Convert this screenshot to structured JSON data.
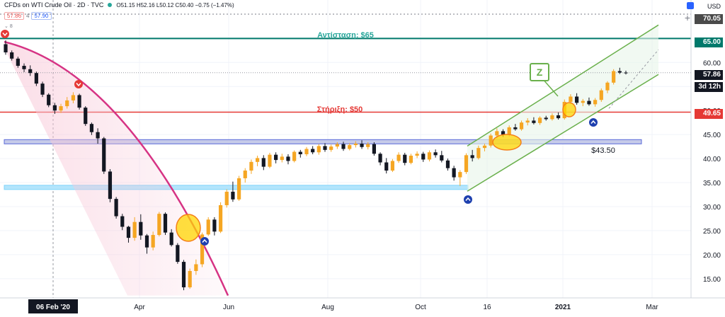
{
  "header": {
    "title": "CFDs on WTI Crude Oil · 2D · TVC",
    "ohlc": "O51.15 H52.16 L50.12 C50.40 −0.75 (−1.47%)",
    "bid": "57.86",
    "ask": "57.90",
    "spread": "4",
    "indicator_count": "8",
    "currency": "USD"
  },
  "colors": {
    "up": "#f5a623",
    "down": "#131722",
    "resistance": "#00796b",
    "support": "#e53935",
    "channel": "#6ab04c",
    "curve": "#d63384",
    "zone": "#5b6bd9",
    "highlight": "#ffd600"
  },
  "labels": {
    "resistance": "Αντίσταση: $65",
    "support": "Στήριξη: $50",
    "zone_label": "$43.50",
    "z_marker": "Z"
  },
  "price_tags": {
    "top": "70.05",
    "resistance": "65.00",
    "last": "57.86",
    "countdown": "3d 12h",
    "support": "49.65"
  },
  "chart_data": {
    "type": "candlestick",
    "ylim": [
      11,
      73
    ],
    "y_ticks": [
      15.0,
      20.0,
      25.0,
      30.0,
      35.0,
      40.0,
      45.0,
      50.0,
      55.0,
      60.0
    ],
    "x_ticks": [
      "06 Feb '20",
      "Apr",
      "Jun",
      "Aug",
      "Oct",
      "16",
      "2021",
      "Mar"
    ],
    "horizontal_levels": [
      {
        "name": "resistance",
        "value": 65.0
      },
      {
        "name": "support",
        "value": 49.65
      },
      {
        "name": "zone_high",
        "value": 43.5
      },
      {
        "name": "zone_low",
        "value": 34.0
      }
    ],
    "series": [
      {
        "phase": "feb",
        "ohlc": [
          [
            63.8,
            64.6,
            61.6,
            62.1
          ],
          [
            62.1,
            62.5,
            60.4,
            60.8
          ],
          [
            60.8,
            61.2,
            58.9,
            59.3
          ],
          [
            59.3,
            59.8,
            58.0,
            58.6
          ],
          [
            58.6,
            59.4,
            57.2,
            57.8
          ],
          [
            57.8,
            58.1,
            55.1,
            55.6
          ],
          [
            55.6,
            56.0,
            52.8,
            53.3
          ],
          [
            53.3,
            53.6,
            50.7,
            51.1
          ],
          [
            51.1,
            51.6,
            49.3,
            50.0
          ],
          [
            50.0,
            51.4,
            49.5,
            50.9
          ],
          [
            50.9,
            52.8,
            50.4,
            52.1
          ],
          [
            52.1,
            53.8,
            51.5,
            53.2
          ],
          [
            53.2,
            53.5,
            50.2,
            50.6
          ],
          [
            50.6,
            50.9,
            46.8,
            47.2
          ],
          [
            47.2,
            47.5,
            44.9,
            45.5
          ],
          [
            45.5,
            46.3,
            43.1,
            44.2
          ]
        ]
      },
      {
        "phase": "crash",
        "ohlc": [
          [
            44.2,
            44.5,
            36.8,
            37.3
          ],
          [
            37.3,
            37.8,
            30.9,
            31.6
          ],
          [
            31.6,
            32.0,
            27.5,
            28.0
          ],
          [
            28.0,
            28.5,
            25.1,
            25.8
          ],
          [
            25.8,
            26.0,
            22.5,
            23.5
          ],
          [
            23.5,
            27.8,
            22.9,
            26.8
          ],
          [
            26.8,
            28.4,
            23.1,
            24.0
          ],
          [
            24.0,
            24.3,
            20.2,
            21.5
          ],
          [
            21.5,
            24.8,
            20.9,
            24.1
          ],
          [
            24.1,
            28.9,
            23.8,
            28.5
          ],
          [
            28.5,
            28.8,
            24.1,
            24.6
          ],
          [
            24.6,
            25.3,
            21.7,
            22.0
          ],
          [
            22.0,
            22.4,
            18.1,
            18.5
          ],
          [
            18.5,
            18.9,
            12.6,
            13.2
          ],
          [
            13.2,
            17.1,
            12.9,
            16.6
          ],
          [
            16.6,
            19.0,
            15.8,
            18.0
          ]
        ]
      },
      {
        "phase": "recovery",
        "ohlc": [
          [
            18.0,
            24.6,
            17.4,
            24.2
          ],
          [
            24.2,
            27.8,
            23.9,
            27.3
          ],
          [
            27.3,
            27.8,
            24.0,
            24.8
          ],
          [
            24.8,
            30.9,
            24.5,
            30.3
          ],
          [
            30.3,
            33.6,
            29.8,
            33.1
          ],
          [
            33.1,
            35.2,
            31.0,
            31.5
          ],
          [
            31.5,
            36.4,
            31.2,
            35.9
          ],
          [
            35.9,
            38.0,
            35.0,
            37.5
          ],
          [
            37.5,
            39.8,
            36.8,
            39.3
          ],
          [
            39.3,
            40.6,
            38.4,
            40.1
          ],
          [
            40.1,
            40.7,
            37.6,
            38.3
          ],
          [
            38.3,
            41.2,
            38.0,
            40.8
          ],
          [
            40.8,
            41.3,
            39.0,
            39.7
          ],
          [
            39.7,
            41.0,
            39.2,
            40.4
          ],
          [
            40.4,
            40.9,
            38.8,
            39.5
          ],
          [
            39.5,
            41.7,
            39.2,
            41.4
          ],
          [
            41.4,
            41.8,
            40.2,
            40.9
          ],
          [
            40.9,
            42.4,
            40.5,
            42.0
          ],
          [
            42.0,
            42.6,
            40.9,
            41.3
          ],
          [
            41.3,
            43.0,
            40.8,
            42.6
          ]
        ]
      },
      {
        "phase": "range",
        "ohlc": [
          [
            42.6,
            43.2,
            41.4,
            41.8
          ],
          [
            41.8,
            42.9,
            41.4,
            42.5
          ],
          [
            42.5,
            43.4,
            42.0,
            43.0
          ],
          [
            43.0,
            43.5,
            41.6,
            42.0
          ],
          [
            42.0,
            43.2,
            41.7,
            42.8
          ],
          [
            42.8,
            43.6,
            42.3,
            43.1
          ],
          [
            43.1,
            43.8,
            42.0,
            42.4
          ],
          [
            42.4,
            43.4,
            41.9,
            43.0
          ],
          [
            43.0,
            43.4,
            40.6,
            41.0
          ],
          [
            41.0,
            41.3,
            38.6,
            39.2
          ],
          [
            39.2,
            40.1,
            36.9,
            37.5
          ],
          [
            37.5,
            39.9,
            37.2,
            39.5
          ],
          [
            39.5,
            41.3,
            39.1,
            40.8
          ],
          [
            40.8,
            41.2,
            38.6,
            39.1
          ],
          [
            39.1,
            41.0,
            38.8,
            40.6
          ],
          [
            40.6,
            41.5,
            40.1,
            41.0
          ],
          [
            41.0,
            41.4,
            39.3,
            39.8
          ],
          [
            39.8,
            41.7,
            39.4,
            41.3
          ],
          [
            41.3,
            41.9,
            40.2,
            40.7
          ],
          [
            40.7,
            41.6,
            39.2,
            39.6
          ],
          [
            39.6,
            40.0,
            37.5,
            38.0
          ],
          [
            38.0,
            38.5,
            35.4,
            36.1
          ],
          [
            36.1,
            37.6,
            34.3,
            37.2
          ]
        ]
      },
      {
        "phase": "uptrend",
        "ohlc": [
          [
            37.2,
            41.1,
            36.8,
            40.7
          ],
          [
            40.7,
            41.8,
            39.4,
            40.1
          ],
          [
            40.1,
            42.7,
            39.8,
            42.2
          ],
          [
            42.2,
            43.1,
            41.5,
            42.7
          ],
          [
            42.7,
            45.2,
            42.3,
            44.8
          ],
          [
            44.8,
            46.3,
            44.2,
            45.7
          ],
          [
            45.7,
            46.1,
            44.5,
            45.0
          ],
          [
            45.0,
            46.9,
            44.6,
            46.5
          ],
          [
            46.5,
            47.2,
            45.8,
            46.1
          ],
          [
            46.1,
            47.9,
            45.8,
            47.5
          ],
          [
            47.5,
            48.4,
            46.9,
            47.9
          ],
          [
            47.9,
            48.6,
            47.1,
            47.4
          ],
          [
            47.4,
            48.8,
            47.0,
            48.5
          ],
          [
            48.5,
            48.9,
            47.9,
            48.2
          ],
          [
            48.2,
            49.4,
            47.9,
            49.0
          ],
          [
            49.0,
            49.6,
            48.1,
            48.4
          ],
          [
            48.4,
            52.3,
            48.1,
            51.8
          ],
          [
            51.8,
            53.4,
            51.3,
            52.9
          ],
          [
            52.9,
            53.6,
            51.2,
            51.6
          ],
          [
            51.6,
            52.4,
            50.9,
            52.0
          ],
          [
            52.0,
            52.7,
            51.0,
            51.3
          ],
          [
            51.3,
            52.6,
            50.8,
            52.2
          ],
          [
            52.2,
            54.6,
            51.8,
            54.2
          ],
          [
            54.2,
            56.1,
            53.6,
            55.8
          ],
          [
            55.8,
            58.6,
            55.4,
            58.2
          ],
          [
            58.2,
            58.9,
            57.6,
            57.9
          ],
          [
            57.9,
            58.3,
            57.5,
            57.86
          ]
        ]
      }
    ]
  }
}
